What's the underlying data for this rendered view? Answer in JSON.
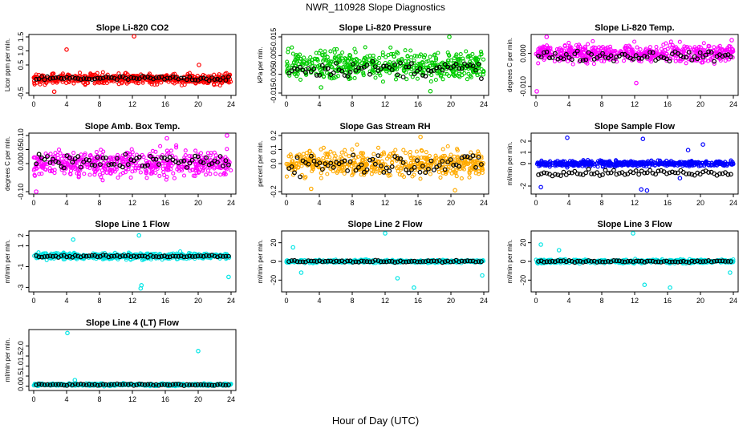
{
  "title": "NWR_110928  Slope Diagnostics",
  "xlabel": "Hour of Day (UTC)",
  "chart_data": [
    {
      "type": "scatter",
      "title": "Slope Li-820 CO2",
      "ylabel": "Licor ppm per min.",
      "xlim": [
        0,
        24
      ],
      "ylim": [
        -0.5,
        1.5
      ],
      "xticks": [
        "0",
        "4",
        "8",
        "12",
        "16",
        "20",
        "24"
      ],
      "yticks": [
        "-0.5",
        "0.5",
        "1.0",
        "1.5"
      ],
      "ytick_values": [
        -0.5,
        0.5,
        1.0,
        1.5
      ],
      "color": "#ff0000",
      "center": 0.0,
      "spread": 0.18,
      "black_offset": 0.02,
      "black_spread": 0.08,
      "outliers": [
        [
          4.0,
          1.05
        ],
        [
          12.2,
          1.52
        ],
        [
          20.1,
          0.5
        ],
        [
          2.5,
          -0.45
        ]
      ]
    },
    {
      "type": "scatter",
      "title": "Slope Li-820 Pressure",
      "ylabel": "kPa per min.",
      "xlim": [
        0,
        24
      ],
      "ylim": [
        -0.015,
        0.015
      ],
      "xticks": [
        "0",
        "4",
        "8",
        "12",
        "16",
        "20",
        "24"
      ],
      "yticks": [
        "-0.015",
        "-0.005",
        "0.005",
        "0.015"
      ],
      "ytick_values": [
        -0.015,
        -0.005,
        0.005,
        0.015
      ],
      "color": "#00cc00",
      "center": 0.0,
      "spread": 0.0075,
      "black_offset": -0.002,
      "black_spread": 0.004,
      "outliers": [
        [
          19.8,
          0.015
        ],
        [
          17.5,
          -0.014
        ],
        [
          4.2,
          -0.012
        ]
      ]
    },
    {
      "type": "scatter",
      "title": "Slope Li-820 Temp.",
      "ylabel": "degrees C per min.",
      "xlim": [
        0,
        24
      ],
      "ylim": [
        -0.012,
        0.005
      ],
      "xticks": [
        "0",
        "4",
        "8",
        "12",
        "16",
        "20",
        "24"
      ],
      "yticks": [
        "-0.010",
        "0.000"
      ],
      "ytick_values": [
        -0.01,
        0.0
      ],
      "color": "#ff00ff",
      "center": 0.0,
      "spread": 0.0025,
      "black_offset": -0.0008,
      "black_spread": 0.0015,
      "outliers": [
        [
          1.3,
          0.005
        ],
        [
          0.1,
          -0.0115
        ],
        [
          23.8,
          0.004
        ],
        [
          12.2,
          -0.009
        ]
      ]
    },
    {
      "type": "scatter",
      "title": "Slope Amb. Box Temp.",
      "ylabel": "degrees C per min.",
      "xlim": [
        0,
        24
      ],
      "ylim": [
        -0.1,
        0.1
      ],
      "xticks": [
        "0",
        "4",
        "8",
        "12",
        "16",
        "20",
        "24"
      ],
      "yticks": [
        "-0.10",
        "0.00",
        "0.05",
        "0.10"
      ],
      "ytick_values": [
        -0.1,
        0.0,
        0.05,
        0.1
      ],
      "color": "#ff00ff",
      "center": 0.0,
      "spread": 0.045,
      "black_offset": 0.01,
      "black_spread": 0.025,
      "outliers": [
        [
          0.3,
          -0.1
        ],
        [
          23.5,
          0.1
        ],
        [
          16.2,
          0.09
        ]
      ]
    },
    {
      "type": "scatter",
      "title": "Slope Gas Stream RH",
      "ylabel": "percent per min.",
      "xlim": [
        0,
        24
      ],
      "ylim": [
        -0.2,
        0.2
      ],
      "xticks": [
        "0",
        "4",
        "8",
        "12",
        "16",
        "20",
        "24"
      ],
      "yticks": [
        "-0.2",
        "0.0",
        "0.1",
        "0.2"
      ],
      "ytick_values": [
        -0.2,
        0.0,
        0.1,
        0.2
      ],
      "color": "#ffaa00",
      "center": 0.0,
      "spread": 0.09,
      "black_offset": 0.0,
      "black_spread": 0.07,
      "outliers": [
        [
          16.3,
          0.19
        ],
        [
          20.5,
          -0.19
        ],
        [
          3.0,
          -0.18
        ]
      ]
    },
    {
      "type": "scatter",
      "title": "Slope Sample Flow",
      "ylabel": "ml/min per min.",
      "xlim": [
        0,
        24
      ],
      "ylim": [
        -2.5,
        2.5
      ],
      "xticks": [
        "0",
        "4",
        "8",
        "12",
        "16",
        "20",
        "24"
      ],
      "yticks": [
        "-2",
        "0",
        "1",
        "2"
      ],
      "ytick_values": [
        -2,
        0,
        1,
        2
      ],
      "color": "#0000ff",
      "center": 0.0,
      "spread": 0.25,
      "black_offset": -0.8,
      "black_spread": 0.25,
      "outliers": [
        [
          3.8,
          2.3
        ],
        [
          13.0,
          2.2
        ],
        [
          0.6,
          -2.1
        ],
        [
          12.8,
          -2.3
        ],
        [
          13.5,
          -2.4
        ],
        [
          18.5,
          1.2
        ],
        [
          20.3,
          1.7
        ],
        [
          17.5,
          -1.3
        ]
      ]
    },
    {
      "type": "scatter",
      "title": "Slope Line 1 Flow",
      "ylabel": "ml/min per min.",
      "xlim": [
        0,
        24
      ],
      "ylim": [
        -3.2,
        2.2
      ],
      "xticks": [
        "0",
        "4",
        "8",
        "12",
        "16",
        "20",
        "24"
      ],
      "yticks": [
        "-3",
        "-1",
        "1",
        "2"
      ],
      "ytick_values": [
        -3,
        -1,
        1,
        2
      ],
      "color": "#00e5e5",
      "center": 0.0,
      "spread": 0.3,
      "black_offset": 0.0,
      "black_spread": 0.1,
      "outliers": [
        [
          13.1,
          -2.8
        ],
        [
          13.0,
          -3.1
        ],
        [
          23.7,
          -2.0
        ],
        [
          12.8,
          2.0
        ],
        [
          4.8,
          1.6
        ]
      ]
    },
    {
      "type": "scatter",
      "title": "Slope Line 2 Flow",
      "ylabel": "ml/min per min.",
      "xlim": [
        0,
        24
      ],
      "ylim": [
        -30,
        30
      ],
      "xticks": [
        "0",
        "4",
        "8",
        "12",
        "16",
        "20",
        "24"
      ],
      "yticks": [
        "-20",
        "0",
        "20"
      ],
      "ytick_values": [
        -20,
        0,
        20
      ],
      "color": "#00e5e5",
      "center": 0.0,
      "spread": 1.5,
      "black_offset": 0.0,
      "black_spread": 1.0,
      "outliers": [
        [
          12.0,
          30
        ],
        [
          15.5,
          -28
        ],
        [
          0.8,
          15
        ],
        [
          1.8,
          -12
        ],
        [
          13.5,
          -18
        ],
        [
          23.8,
          -15
        ]
      ]
    },
    {
      "type": "scatter",
      "title": "Slope Line 3 Flow",
      "ylabel": "ml/min per min.",
      "xlim": [
        0,
        24
      ],
      "ylim": [
        -30,
        30
      ],
      "xticks": [
        "0",
        "4",
        "8",
        "12",
        "16",
        "20",
        "24"
      ],
      "yticks": [
        "-20",
        "0",
        "20"
      ],
      "ytick_values": [
        -20,
        0,
        20
      ],
      "color": "#00e5e5",
      "center": 0.0,
      "spread": 2.0,
      "black_offset": 0.0,
      "black_spread": 1.0,
      "outliers": [
        [
          11.8,
          30
        ],
        [
          0.6,
          18
        ],
        [
          13.2,
          -25
        ],
        [
          16.3,
          -28
        ],
        [
          23.6,
          -12
        ],
        [
          2.8,
          12
        ]
      ]
    },
    {
      "type": "scatter",
      "title": "Slope Line 4 (LT) Flow",
      "ylabel": "ml/min per min.",
      "xlim": [
        0,
        24
      ],
      "ylim": [
        -0.1,
        2.7
      ],
      "xticks": [
        "0",
        "4",
        "8",
        "12",
        "16",
        "20",
        "24"
      ],
      "yticks": [
        "0.0",
        "0.5",
        "1.0",
        "1.5",
        "2.0"
      ],
      "ytick_values": [
        0.0,
        0.5,
        1.0,
        1.5,
        2.0
      ],
      "color": "#00e5e5",
      "center": 0.07,
      "spread": 0.06,
      "black_offset": 0.0,
      "black_spread": 0.04,
      "outliers": [
        [
          4.1,
          2.65
        ],
        [
          20.0,
          1.75
        ],
        [
          5.0,
          0.3
        ]
      ]
    }
  ]
}
